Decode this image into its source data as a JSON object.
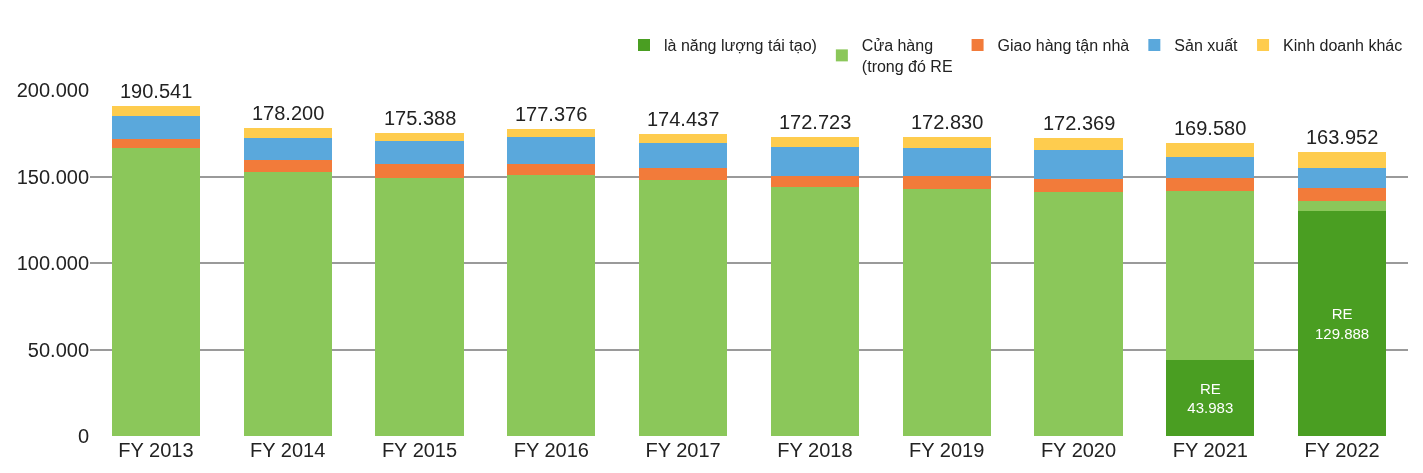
{
  "chart_data": {
    "type": "bar",
    "stacked": true,
    "categories": [
      "FY 2013",
      "FY 2014",
      "FY 2015",
      "FY 2016",
      "FY 2017",
      "FY 2018",
      "FY 2019",
      "FY 2020",
      "FY 2021",
      "FY 2022"
    ],
    "series": [
      {
        "name": "là năng lượng tái tạo)",
        "color": "#4a9e22",
        "values": [
          null,
          null,
          null,
          null,
          null,
          null,
          null,
          null,
          43983,
          129888
        ],
        "value_labels": [
          null,
          null,
          null,
          null,
          null,
          null,
          null,
          null,
          "RE\n43.983",
          "RE\n129.888"
        ]
      },
      {
        "name": "Cửa hàng\n(trong đó RE",
        "color": "#8bc75a",
        "values": [
          166500,
          152400,
          149400,
          150600,
          147900,
          143800,
          142600,
          141100,
          97500,
          5900
        ]
      },
      {
        "name": "Giao hàng tận nhà",
        "color": "#f27b3a",
        "values": [
          5300,
          7300,
          7600,
          6800,
          6800,
          6600,
          7600,
          7200,
          7900,
          7600
        ]
      },
      {
        "name": "Sản xuất",
        "color": "#5aa8dc",
        "values": [
          12900,
          12500,
          13500,
          15300,
          14600,
          16600,
          16300,
          17000,
          12000,
          11700
        ]
      },
      {
        "name": "Kinh doanh khác",
        "color": "#fecc4e",
        "values": [
          5841,
          6000,
          4888,
          4676,
          5137,
          5723,
          6330,
          7069,
          8197,
          8864
        ]
      }
    ],
    "totals": [
      "190.541",
      "178.200",
      "175.388",
      "177.376",
      "174.437",
      "172.723",
      "172.830",
      "172.369",
      "169.580",
      "163.952"
    ],
    "ylim": [
      0,
      200000
    ],
    "yticks": [
      {
        "value": 0,
        "label": "0"
      },
      {
        "value": 50000,
        "label": "50.000"
      },
      {
        "value": 100000,
        "label": "100.000"
      },
      {
        "value": 150000,
        "label": "150.000"
      },
      {
        "value": 200000,
        "label": "200.000"
      }
    ],
    "grid": "y",
    "legend": "top right"
  }
}
